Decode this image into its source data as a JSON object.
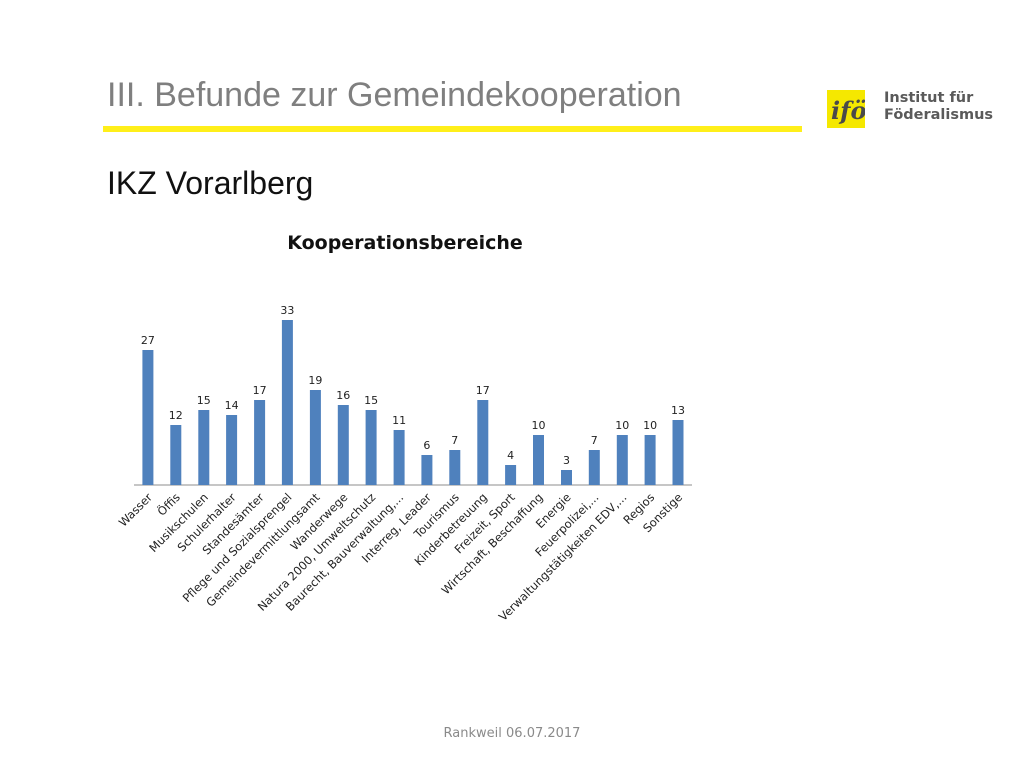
{
  "header": {
    "title": "III. Befunde zur Gemeindekooperation",
    "accent_color": "#ffef1a"
  },
  "logo": {
    "line1": "Institut für",
    "line2": "Föderalismus",
    "mark_text": "ifö",
    "mark_color": "#f5e800"
  },
  "subtitle": "IKZ Vorarlberg",
  "chart_data": {
    "type": "bar",
    "title": "Kooperationsbereiche",
    "categories": [
      "Wasser",
      "Öffis",
      "Musikschulen",
      "Schulerhalter",
      "Standesämter",
      "Pflege und Sozialsprengel",
      "Gemeindevermittlungsamt",
      "Wanderwege",
      "Natura 2000, Umweltschutz",
      "Baurecht, Bauverwaltung,...",
      "Interreg, Leader",
      "Tourismus",
      "Kinderbetreuung",
      "Freizeit, Sport",
      "Wirtschaft, Beschaffung",
      "Energie",
      "Feuerpolizei,...",
      "Verwaltungstätigkeiten EDV,...",
      "Regios",
      "Sonstige"
    ],
    "values": [
      27,
      12,
      15,
      14,
      17,
      33,
      19,
      16,
      15,
      11,
      6,
      7,
      17,
      4,
      10,
      3,
      7,
      10,
      10,
      13
    ],
    "ylim": [
      0,
      33
    ],
    "grid": false,
    "legend": "none",
    "bar_color": "#4f81bd"
  },
  "footer": "Rankweil 06.07.2017"
}
